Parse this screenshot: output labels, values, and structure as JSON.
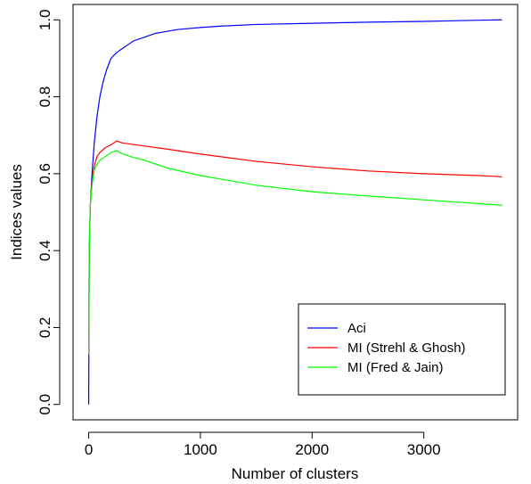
{
  "chart_data": {
    "type": "line",
    "title": "",
    "xlabel": "Number of clusters",
    "ylabel": "Indices values",
    "xlim": [
      -140,
      3840
    ],
    "ylim": [
      -0.04,
      1.04
    ],
    "xticks": [
      0,
      1000,
      2000,
      3000
    ],
    "xtick_labels": [
      "0",
      "1000",
      "2000",
      "3000"
    ],
    "yticks": [
      0.0,
      0.2,
      0.4,
      0.6,
      0.8,
      1.0
    ],
    "ytick_labels": [
      "0.0",
      "0.2",
      "0.4",
      "0.6",
      "0.8",
      "1.0"
    ],
    "grid": false,
    "legend_position": "bottom-right",
    "series": [
      {
        "name": "Aci",
        "color": "#0000ff",
        "x": [
          0,
          5,
          15,
          30,
          50,
          75,
          100,
          130,
          160,
          200,
          250,
          300,
          350,
          400,
          500,
          600,
          700,
          800,
          1000,
          1200,
          1500,
          2000,
          2500,
          3000,
          3500,
          3700
        ],
        "y": [
          0.0,
          0.4,
          0.52,
          0.6,
          0.68,
          0.75,
          0.8,
          0.84,
          0.87,
          0.9,
          0.915,
          0.925,
          0.935,
          0.945,
          0.955,
          0.965,
          0.97,
          0.975,
          0.98,
          0.984,
          0.988,
          0.991,
          0.994,
          0.996,
          0.999,
          1.0
        ]
      },
      {
        "name": "MI (Strehl & Ghosh)",
        "color": "#ff0000",
        "x": [
          0,
          5,
          15,
          30,
          50,
          75,
          100,
          150,
          200,
          250,
          300,
          400,
          500,
          700,
          1000,
          1500,
          2000,
          2500,
          3000,
          3500,
          3700
        ],
        "y": [
          0.13,
          0.4,
          0.52,
          0.58,
          0.62,
          0.645,
          0.655,
          0.668,
          0.675,
          0.685,
          0.68,
          0.676,
          0.672,
          0.664,
          0.651,
          0.632,
          0.618,
          0.607,
          0.6,
          0.595,
          0.592
        ]
      },
      {
        "name": "MI (Fred & Jain)",
        "color": "#00ff00",
        "x": [
          0,
          5,
          15,
          30,
          50,
          75,
          100,
          150,
          200,
          250,
          300,
          400,
          500,
          700,
          1000,
          1500,
          2000,
          2500,
          3000,
          3500,
          3700
        ],
        "y": [
          0.13,
          0.4,
          0.52,
          0.57,
          0.61,
          0.625,
          0.635,
          0.645,
          0.655,
          0.66,
          0.652,
          0.642,
          0.635,
          0.615,
          0.595,
          0.57,
          0.553,
          0.542,
          0.532,
          0.522,
          0.518
        ]
      }
    ]
  }
}
